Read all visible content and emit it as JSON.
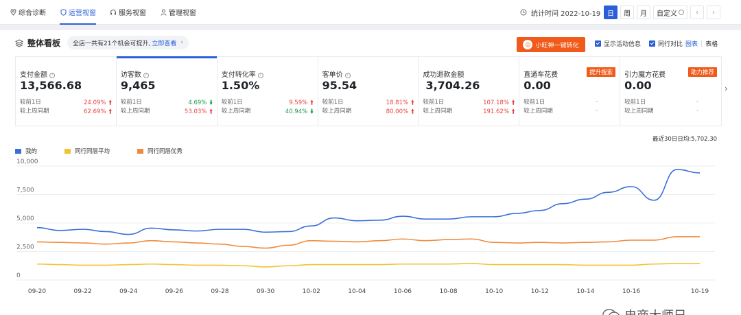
{
  "nav": {
    "tabs": [
      {
        "label": "综合诊断",
        "icon": "location-pin-icon"
      },
      {
        "label": "运营视窗",
        "icon": "shield-icon",
        "active": true
      },
      {
        "label": "服务视窗",
        "icon": "headset-icon"
      },
      {
        "label": "管理视窗",
        "icon": "person-icon"
      }
    ],
    "stat_time": "统计时间 2022-10-19",
    "periods": [
      "日",
      "周",
      "月",
      "自定义"
    ],
    "period_arrows": [
      "‹",
      "›"
    ]
  },
  "panel": {
    "title": "整体看板",
    "opportunity_text": "全店一共有21个机会可提升,",
    "opportunity_link": "立即查看",
    "wang_button": "小旺神一键转化",
    "options": {
      "show_activity": "显示活动信息",
      "peer_compare": "同行对比",
      "chart_link": "图表",
      "table_link": "表格"
    }
  },
  "kpis": [
    {
      "name": "支付金额",
      "value": "13,566.68",
      "r1_label": "较前1日",
      "r1_pct": "24.09%",
      "r1_dir": "up",
      "r2_label": "较上周同期",
      "r2_pct": "62.69%",
      "r2_dir": "up"
    },
    {
      "name": "访客数",
      "value": "9,465",
      "r1_label": "较前1日",
      "r1_pct": "4.69%",
      "r1_dir": "down",
      "r2_label": "较上周同期",
      "r2_pct": "53.03%",
      "r2_dir": "up"
    },
    {
      "name": "支付转化率",
      "value": "1.50%",
      "r1_label": "较前1日",
      "r1_pct": "9.59%",
      "r1_dir": "up",
      "r2_label": "较上周同期",
      "r2_pct": "40.94%",
      "r2_dir": "down"
    },
    {
      "name": "客单价",
      "value": "95.54",
      "r1_label": "较前1日",
      "r1_pct": "18.81%",
      "r1_dir": "up",
      "r2_label": "较上周同期",
      "r2_pct": "80.00%",
      "r2_dir": "up"
    },
    {
      "name": "成功退款金额",
      "value": "3,704.26",
      "r1_label": "较前1日",
      "r1_pct": "107.18%",
      "r1_dir": "up",
      "r2_label": "较上周同期",
      "r2_pct": "191.62%",
      "r2_dir": "up"
    },
    {
      "name": "直通车花费",
      "value": "0.00",
      "tag": "提升搜索",
      "r1_label": "较前1日",
      "r1_pct": "-",
      "r2_label": "较上周同期",
      "r2_pct": "-"
    },
    {
      "name": "引力魔方花费",
      "value": "0.00",
      "tag": "助力推荐",
      "r1_label": "较前1日",
      "r1_pct": "-",
      "r2_label": "较上周同期",
      "r2_pct": "-"
    }
  ],
  "chart_note": "最近30日日均:5,702.30",
  "watermark": "电商大师兄",
  "colors": {
    "accent": "#2b5fd9",
    "orange": "#f05a1a",
    "me": "#3a6fd8",
    "peer_avg": "#f2c330",
    "peer_top": "#f08a3c"
  },
  "chart_data": {
    "type": "line",
    "x": [
      "09-20",
      "09-21",
      "09-22",
      "09-23",
      "09-24",
      "09-25",
      "09-26",
      "09-27",
      "09-28",
      "09-29",
      "09-30",
      "10-01",
      "10-02",
      "10-03",
      "10-04",
      "10-05",
      "10-06",
      "10-07",
      "10-08",
      "10-09",
      "10-10",
      "10-11",
      "10-12",
      "10-13",
      "10-14",
      "10-15",
      "10-16",
      "10-17",
      "10-18",
      "10-19"
    ],
    "x_tick_labels": [
      "09-20",
      "09-22",
      "09-24",
      "09-26",
      "09-28",
      "09-30",
      "10-02",
      "10-04",
      "10-06",
      "10-08",
      "10-10",
      "10-12",
      "10-14",
      "10-16",
      "10-19"
    ],
    "ylim": [
      0,
      10000
    ],
    "y_ticks": [
      "0",
      "2,500",
      "5,000",
      "7,500",
      "10,000"
    ],
    "y_tick_values": [
      0,
      2500,
      5000,
      7500,
      10000
    ],
    "grid": true,
    "legend_position": "top-left",
    "series": [
      {
        "name": "我的",
        "color": "#3a6fd8",
        "values": [
          4600,
          4350,
          4450,
          4250,
          4000,
          4550,
          4400,
          4300,
          4450,
          4450,
          4200,
          4250,
          4750,
          5450,
          5200,
          5250,
          5600,
          5350,
          5350,
          5550,
          5550,
          5850,
          6100,
          6700,
          7100,
          7700,
          8200,
          7000,
          9700,
          9400
        ]
      },
      {
        "name": "同行同层平均",
        "color": "#f2c330",
        "values": [
          1400,
          1350,
          1300,
          1300,
          1350,
          1400,
          1350,
          1300,
          1300,
          1250,
          1150,
          1250,
          1350,
          1350,
          1350,
          1350,
          1400,
          1400,
          1400,
          1450,
          1350,
          1350,
          1350,
          1350,
          1300,
          1300,
          1300,
          1400,
          1450,
          1450
        ]
      },
      {
        "name": "同行同层优秀",
        "color": "#f08a3c",
        "values": [
          3350,
          3300,
          3250,
          3150,
          3250,
          3450,
          3350,
          3250,
          3150,
          2950,
          2800,
          3050,
          3450,
          3400,
          3350,
          3450,
          3600,
          3450,
          3550,
          3600,
          3300,
          3250,
          3300,
          3250,
          3300,
          3350,
          3500,
          3500,
          3800,
          3800
        ]
      }
    ]
  }
}
